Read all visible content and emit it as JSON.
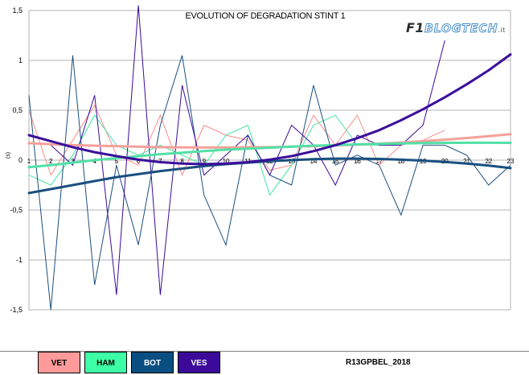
{
  "chart_data": {
    "type": "line",
    "title": "EVOLUTION OF DEGRADATION STINT 1",
    "ylabel": "(s)",
    "xlabel": "",
    "x": [
      1,
      2,
      3,
      4,
      5,
      6,
      7,
      8,
      9,
      10,
      11,
      12,
      13,
      14,
      15,
      16,
      17,
      18,
      19,
      20,
      21,
      22,
      23
    ],
    "ylim": [
      -1.5,
      1.5
    ],
    "yticks": [
      "1,5",
      "1",
      "0,5",
      "0",
      "-0,5",
      "-1",
      "-1,5"
    ],
    "ytick_values": [
      1.5,
      1,
      0.5,
      0,
      -0.5,
      -1,
      -1.5
    ],
    "grid": true,
    "series": [
      {
        "name": "VET",
        "color": "#ff8a8a",
        "trend_color": "#f4a09a",
        "values": [
          0.5,
          -0.15,
          0.2,
          0.55,
          0.05,
          -0.05,
          0.45,
          -0.15,
          0.35,
          0.25,
          0.2,
          -0.1,
          -0.05,
          0.45,
          0.15,
          0.45,
          -0.05,
          0.15,
          0.2,
          0.3,
          null,
          null,
          null
        ],
        "trend": [
          0.17,
          0.16,
          0.15,
          0.145,
          0.14,
          0.135,
          0.13,
          0.128,
          0.127,
          0.127,
          0.128,
          0.13,
          0.135,
          0.14,
          0.147,
          0.155,
          0.165,
          0.177,
          0.19,
          0.205,
          0.222,
          0.24,
          0.26
        ]
      },
      {
        "name": "HAM",
        "color": "#3de8a0",
        "trend_color": "#52e0a6",
        "values": [
          -0.15,
          -0.25,
          0.05,
          0.45,
          0.15,
          0.05,
          0.15,
          0.05,
          -0.05,
          0.25,
          0.35,
          -0.35,
          -0.05,
          0.35,
          0.45,
          0.15,
          0.15,
          0.15,
          null,
          null,
          null,
          null,
          null
        ],
        "trend": [
          -0.07,
          -0.05,
          -0.025,
          0.0,
          0.02,
          0.04,
          0.06,
          0.075,
          0.09,
          0.105,
          0.115,
          0.125,
          0.135,
          0.145,
          0.15,
          0.158,
          0.163,
          0.168,
          0.171,
          0.173,
          0.174,
          0.174,
          0.173
        ]
      },
      {
        "name": "BOT",
        "color": "#1a4f80",
        "trend_color": "#1a4f80",
        "values": [
          0.65,
          -1.5,
          1.05,
          -1.25,
          -0.05,
          -0.85,
          0.35,
          1.05,
          -0.35,
          -0.85,
          0.25,
          -0.15,
          -0.25,
          0.75,
          -0.05,
          0.05,
          -0.05,
          -0.55,
          0.15,
          0.15,
          0.05,
          -0.25,
          -0.05
        ],
        "trend": [
          -0.33,
          -0.29,
          -0.25,
          -0.21,
          -0.17,
          -0.14,
          -0.11,
          -0.085,
          -0.06,
          -0.04,
          -0.025,
          -0.01,
          0.0,
          0.01,
          0.015,
          0.015,
          0.012,
          0.005,
          -0.005,
          -0.018,
          -0.035,
          -0.055,
          -0.08
        ]
      },
      {
        "name": "VES",
        "color": "#3a0a9a",
        "trend_color": "#3b0f9c",
        "values": [
          null,
          0.15,
          -0.05,
          0.65,
          -1.35,
          1.55,
          -1.35,
          0.75,
          -0.15,
          0.05,
          0.25,
          -0.15,
          0.35,
          0.15,
          -0.25,
          0.25,
          0.15,
          0.15,
          0.35,
          1.2,
          null,
          null,
          null
        ],
        "trend": [
          0.25,
          0.19,
          0.13,
          0.08,
          0.04,
          0.005,
          -0.02,
          -0.035,
          -0.04,
          -0.035,
          -0.02,
          0.005,
          0.04,
          0.09,
          0.15,
          0.22,
          0.3,
          0.4,
          0.51,
          0.63,
          0.76,
          0.9,
          1.06
        ]
      }
    ]
  },
  "logo": {
    "prefix": "F1",
    "word": "BLOGTECH",
    "suffix": ".it"
  },
  "legend": {
    "labels": [
      "VET",
      "HAM",
      "BOT",
      "VES"
    ],
    "race_code": "R13GPBEL_2018"
  }
}
